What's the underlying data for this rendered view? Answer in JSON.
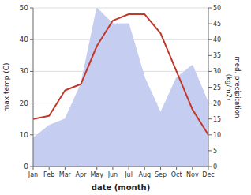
{
  "chart_data": {
    "type": "line",
    "xlabel": "date (month)",
    "ylabel": "max temp (C)",
    "y2label": "med. precipitation\n(kg/m2)",
    "categories": [
      "Jan",
      "Feb",
      "Mar",
      "Apr",
      "May",
      "Jun",
      "Jul",
      "Aug",
      "Sep",
      "Oct",
      "Nov",
      "Dec"
    ],
    "series": [
      {
        "type": "area",
        "axis": "y2",
        "color": "#c5cdf0",
        "values": [
          9,
          13,
          15,
          26,
          50,
          45,
          45,
          28,
          17,
          28,
          32,
          20
        ]
      },
      {
        "type": "line",
        "color": "#c0392b",
        "values": [
          15,
          16,
          24,
          26,
          38,
          46,
          48,
          48,
          42,
          30,
          18,
          10
        ]
      }
    ],
    "ylim": [
      0,
      50
    ],
    "yticks": [
      0,
      10,
      20,
      30,
      40,
      50
    ],
    "y2lim": [
      0,
      50
    ],
    "y2ticks": [
      0,
      5,
      10,
      15,
      20,
      25,
      30,
      35,
      40,
      45,
      50
    ],
    "grid": true
  }
}
